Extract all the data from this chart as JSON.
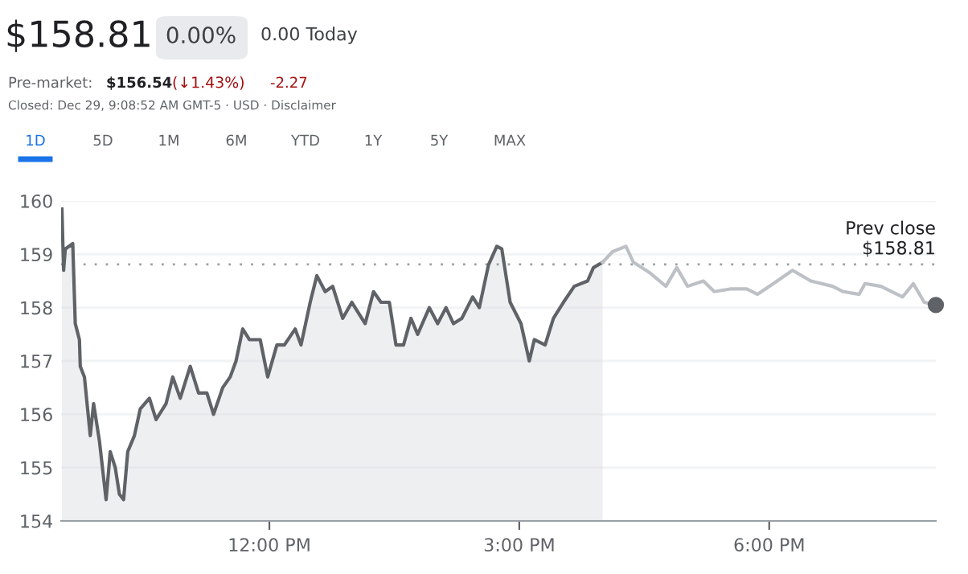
{
  "chart_data": {
    "type": "line",
    "title": "$158.81",
    "annotations": [
      "0.00%",
      "0.00 Today",
      "Pre-market:",
      "$156.54",
      "(↓1.43%)",
      "-2.27",
      "Closed: Dec 29, 9:08:52 AM GMT-5 · USD · Disclaimer",
      "1D",
      "5D",
      "1M",
      "6M",
      "YTD",
      "1Y",
      "5Y",
      "MAX"
    ],
    "series": [
      {
        "type": "area",
        "color": "#5f6368",
        "x": [
          9.51,
          9.53,
          9.55,
          9.64,
          9.67,
          9.72,
          9.73,
          9.78,
          9.85,
          9.89,
          9.96,
          10.04,
          10.09,
          10.15,
          10.2,
          10.25,
          10.3,
          10.38,
          10.45,
          10.56,
          10.64,
          10.76,
          10.84,
          10.93,
          11.05,
          11.15,
          11.25,
          11.33,
          11.44,
          11.53,
          11.6,
          11.68,
          11.76,
          11.89,
          11.98,
          12.09,
          12.18,
          12.31,
          12.38,
          12.49,
          12.57,
          12.67,
          12.76,
          12.88,
          12.99,
          13.15,
          13.25,
          13.34,
          13.44,
          13.52,
          13.61,
          13.7,
          13.78,
          13.92,
          14.02,
          14.12,
          14.21,
          14.31,
          14.44,
          14.52,
          14.63,
          14.73,
          14.79,
          14.89,
          15.02,
          15.12,
          15.18,
          15.31,
          15.41,
          15.53,
          15.66,
          15.82,
          15.89,
          16.0
        ],
        "values": [
          159.85,
          158.7,
          159.1,
          159.2,
          157.7,
          157.4,
          156.9,
          156.7,
          155.6,
          156.2,
          155.5,
          154.4,
          155.3,
          155.0,
          154.5,
          154.4,
          155.3,
          155.6,
          156.1,
          156.3,
          155.9,
          156.2,
          156.7,
          156.3,
          156.9,
          156.4,
          156.4,
          156.0,
          156.5,
          156.7,
          157.0,
          157.6,
          157.4,
          157.4,
          156.7,
          157.3,
          157.3,
          157.6,
          157.3,
          158.1,
          158.6,
          158.3,
          158.4,
          157.8,
          158.1,
          157.7,
          158.3,
          158.1,
          158.1,
          157.3,
          157.3,
          157.8,
          157.5,
          158.0,
          157.7,
          158.0,
          157.7,
          157.8,
          158.2,
          158.0,
          158.8,
          159.15,
          159.1,
          158.1,
          157.7,
          157.0,
          157.4,
          157.3,
          157.8,
          158.1,
          158.4,
          158.5,
          158.75,
          158.85
        ]
      },
      {
        "color": "#bdc1c6",
        "x": [
          16.0,
          16.12,
          16.28,
          16.37,
          16.57,
          16.76,
          16.89,
          17.02,
          17.21,
          17.34,
          17.53,
          17.73,
          17.86,
          18.05,
          18.28,
          18.5,
          18.76,
          18.89,
          19.08,
          19.15,
          19.34,
          19.6,
          19.73,
          19.86,
          20.0
        ],
        "values": [
          158.85,
          159.05,
          159.15,
          158.85,
          158.65,
          158.4,
          158.75,
          158.4,
          158.5,
          158.3,
          158.35,
          158.35,
          158.25,
          158.45,
          158.7,
          158.5,
          158.4,
          158.3,
          158.25,
          158.45,
          158.4,
          158.2,
          158.45,
          158.1,
          158.05
        ]
      },
      {
        "type": "scatter",
        "color": "#5f6368",
        "x": [
          20.0
        ],
        "values": [
          158.05
        ]
      }
    ],
    "xlim": [
      9.5,
      20.0
    ],
    "xticks": [
      {
        "value": 12,
        "label": "12:00 PM"
      },
      {
        "value": 15,
        "label": "3:00 PM"
      },
      {
        "value": 18,
        "label": "6:00 PM"
      }
    ],
    "ylim": [
      154,
      160
    ],
    "yticks": [
      154,
      155,
      156,
      157,
      158,
      159,
      160
    ],
    "grid": "y",
    "ref_lines": [
      {
        "axis": "y",
        "value": 158.81,
        "label": "Prev close\n$158.81",
        "color": "#9aa0a6",
        "line_style": "dotted"
      }
    ]
  }
}
